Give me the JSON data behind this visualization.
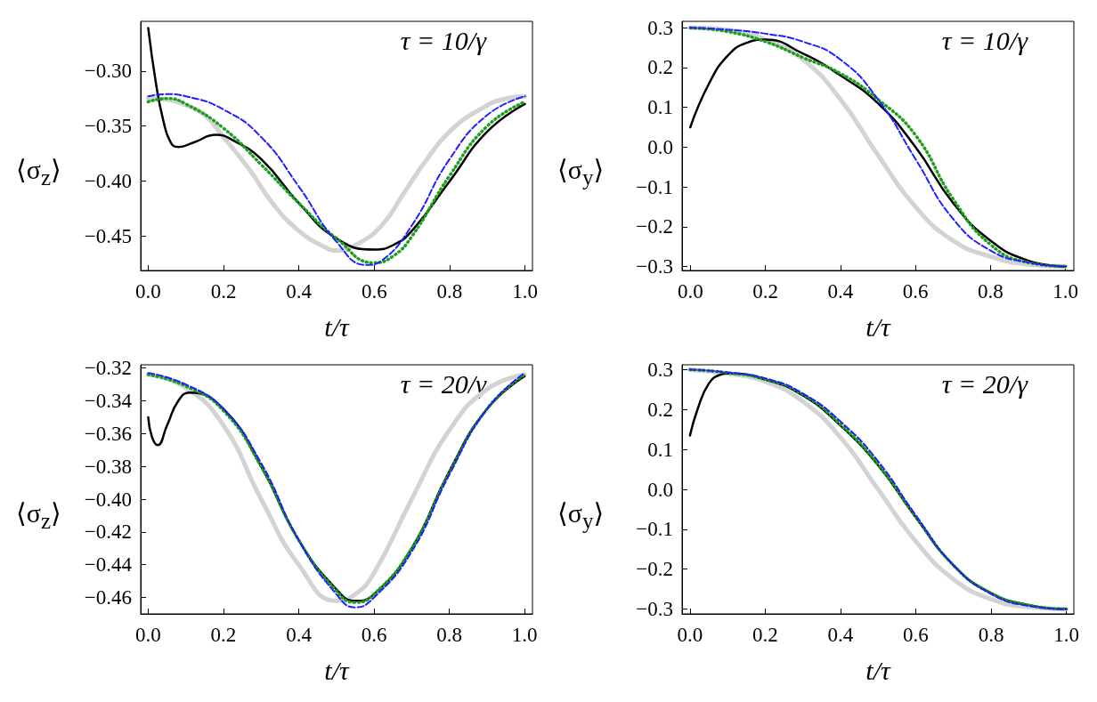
{
  "chart_data": [
    {
      "type": "line",
      "xlabel": "t/τ",
      "ylabel": "⟨σ$_{z}$⟩",
      "annotations": [
        "τ = 10/γ"
      ],
      "grid": false,
      "xlim": [
        -0.02,
        1.02
      ],
      "ylim": [
        -0.481,
        -0.255
      ],
      "xticks": [
        {
          "value": 0,
          "label": "0.0"
        },
        {
          "value": 0.2,
          "label": "0.2"
        },
        {
          "value": 0.4,
          "label": "0.4"
        },
        {
          "value": 0.6,
          "label": "0.6"
        },
        {
          "value": 0.8,
          "label": "0.8"
        },
        {
          "value": 1,
          "label": "1.0"
        }
      ],
      "yticks": [
        {
          "value": -0.3,
          "label": "−0.30"
        },
        {
          "value": -0.35,
          "label": "−0.35"
        },
        {
          "value": -0.4,
          "label": "−0.40"
        },
        {
          "value": -0.45,
          "label": "−0.45"
        }
      ],
      "series": [
        {
          "color": "#d3d3d3",
          "line_style": "solid",
          "x": [
            0,
            0.05,
            0.1,
            0.15,
            0.2,
            0.27,
            0.33,
            0.4,
            0.47,
            0.5,
            0.55,
            0.62,
            0.68,
            0.74,
            0.8,
            0.88,
            0.95,
            1
          ],
          "values": [
            -0.325,
            -0.326,
            -0.331,
            -0.34,
            -0.36,
            -0.39,
            -0.42,
            -0.445,
            -0.46,
            -0.463,
            -0.458,
            -0.44,
            -0.41,
            -0.38,
            -0.355,
            -0.335,
            -0.325,
            -0.323
          ]
        },
        {
          "color": "#000000",
          "line_style": "solid",
          "x": [
            0,
            0.02,
            0.04,
            0.06,
            0.08,
            0.12,
            0.18,
            0.22,
            0.3,
            0.4,
            0.5,
            0.6,
            0.65,
            0.7,
            0.8,
            0.9,
            1
          ],
          "values": [
            -0.261,
            -0.31,
            -0.345,
            -0.365,
            -0.369,
            -0.365,
            -0.358,
            -0.362,
            -0.38,
            -0.42,
            -0.452,
            -0.462,
            -0.458,
            -0.445,
            -0.4,
            -0.355,
            -0.33
          ]
        },
        {
          "color": "#1f1fff",
          "line_style": "dashed",
          "x": [
            0,
            0.05,
            0.1,
            0.2,
            0.3,
            0.4,
            0.5,
            0.58,
            0.62,
            0.7,
            0.8,
            0.9,
            1
          ],
          "values": [
            -0.323,
            -0.321,
            -0.323,
            -0.335,
            -0.36,
            -0.405,
            -0.455,
            -0.476,
            -0.472,
            -0.44,
            -0.38,
            -0.34,
            -0.323
          ]
        },
        {
          "color": "#1aa01a",
          "line_style": "dotted",
          "x": [
            0,
            0.05,
            0.1,
            0.2,
            0.3,
            0.4,
            0.5,
            0.6,
            0.65,
            0.7,
            0.8,
            0.9,
            1
          ],
          "values": [
            -0.328,
            -0.325,
            -0.33,
            -0.352,
            -0.385,
            -0.42,
            -0.452,
            -0.474,
            -0.468,
            -0.45,
            -0.395,
            -0.35,
            -0.328
          ]
        }
      ]
    },
    {
      "type": "line",
      "xlabel": "t/τ",
      "ylabel": "⟨σ$_{y}$⟩",
      "annotations": [
        "τ = 10/γ"
      ],
      "grid": false,
      "xlim": [
        -0.022,
        1.022
      ],
      "ylim": [
        -0.31,
        0.316
      ],
      "xticks": [
        {
          "value": 0,
          "label": "0.0"
        },
        {
          "value": 0.2,
          "label": "0.2"
        },
        {
          "value": 0.4,
          "label": "0.4"
        },
        {
          "value": 0.6,
          "label": "0.6"
        },
        {
          "value": 0.8,
          "label": "0.8"
        },
        {
          "value": 1,
          "label": "1.0"
        }
      ],
      "yticks": [
        {
          "value": 0.3,
          "label": "0.3"
        },
        {
          "value": 0.2,
          "label": "0.2"
        },
        {
          "value": 0.1,
          "label": "0.1"
        },
        {
          "value": 0,
          "label": "0.0"
        },
        {
          "value": -0.1,
          "label": "−0.1"
        },
        {
          "value": -0.2,
          "label": "−0.2"
        },
        {
          "value": -0.3,
          "label": "−0.3"
        }
      ],
      "series": [
        {
          "color": "#d3d3d3",
          "line_style": "solid",
          "x": [
            0,
            0.1,
            0.2,
            0.3,
            0.4,
            0.5,
            0.6,
            0.7,
            0.8,
            0.9,
            1
          ],
          "values": [
            0.3,
            0.295,
            0.27,
            0.22,
            0.12,
            -0.02,
            -0.15,
            -0.235,
            -0.275,
            -0.295,
            -0.3
          ]
        },
        {
          "color": "#000000",
          "line_style": "solid",
          "x": [
            0,
            0.05,
            0.1,
            0.15,
            0.2,
            0.3,
            0.4,
            0.5,
            0.6,
            0.7,
            0.8,
            0.9,
            1
          ],
          "values": [
            0.05,
            0.16,
            0.23,
            0.262,
            0.27,
            0.235,
            0.18,
            0.11,
            0,
            -0.14,
            -0.235,
            -0.285,
            -0.3
          ]
        },
        {
          "color": "#1f1fff",
          "line_style": "dashed",
          "x": [
            0,
            0.1,
            0.2,
            0.3,
            0.4,
            0.5,
            0.6,
            0.7,
            0.8,
            0.9,
            1
          ],
          "values": [
            0.3,
            0.295,
            0.285,
            0.265,
            0.22,
            0.12,
            -0.03,
            -0.18,
            -0.26,
            -0.29,
            -0.3
          ]
        },
        {
          "color": "#1aa01a",
          "line_style": "dotted",
          "x": [
            0,
            0.1,
            0.2,
            0.3,
            0.4,
            0.5,
            0.6,
            0.7,
            0.8,
            0.9,
            1
          ],
          "values": [
            0.3,
            0.29,
            0.265,
            0.225,
            0.185,
            0.12,
            0.03,
            -0.13,
            -0.245,
            -0.29,
            -0.3
          ]
        }
      ]
    },
    {
      "type": "line",
      "xlabel": "t/τ",
      "ylabel": "⟨σ$_{z}$⟩",
      "annotations": [
        "τ = 20/γ"
      ],
      "grid": false,
      "xlim": [
        -0.02,
        1.021
      ],
      "ylim": [
        -0.47,
        -0.318
      ],
      "xticks": [
        {
          "value": 0,
          "label": "0.0"
        },
        {
          "value": 0.2,
          "label": "0.2"
        },
        {
          "value": 0.4,
          "label": "0.4"
        },
        {
          "value": 0.6,
          "label": "0.6"
        },
        {
          "value": 0.8,
          "label": "0.8"
        },
        {
          "value": 1,
          "label": "1.0"
        }
      ],
      "yticks": [
        {
          "value": -0.32,
          "label": "−0.32"
        },
        {
          "value": -0.34,
          "label": "−0.34"
        },
        {
          "value": -0.36,
          "label": "−0.36"
        },
        {
          "value": -0.38,
          "label": "−0.38"
        },
        {
          "value": -0.4,
          "label": "−0.40"
        },
        {
          "value": -0.42,
          "label": "−0.42"
        },
        {
          "value": -0.44,
          "label": "−0.44"
        },
        {
          "value": -0.46,
          "label": "−0.46"
        }
      ],
      "series": [
        {
          "color": "#d3d3d3",
          "line_style": "solid",
          "x": [
            0,
            0.1,
            0.2,
            0.3,
            0.4,
            0.5,
            0.55,
            0.6,
            0.7,
            0.8,
            0.9,
            1
          ],
          "values": [
            -0.324,
            -0.332,
            -0.355,
            -0.4,
            -0.44,
            -0.462,
            -0.458,
            -0.445,
            -0.4,
            -0.358,
            -0.333,
            -0.324
          ]
        },
        {
          "color": "#000000",
          "line_style": "solid",
          "x": [
            0,
            0.01,
            0.025,
            0.05,
            0.08,
            0.11,
            0.2,
            0.3,
            0.4,
            0.5,
            0.55,
            0.6,
            0.7,
            0.8,
            0.9,
            1
          ],
          "values": [
            -0.35,
            -0.362,
            -0.367,
            -0.355,
            -0.34,
            -0.335,
            -0.345,
            -0.38,
            -0.425,
            -0.455,
            -0.462,
            -0.458,
            -0.43,
            -0.383,
            -0.345,
            -0.325
          ]
        },
        {
          "color": "#1f1fff",
          "line_style": "dashed",
          "x": [
            0,
            0.1,
            0.2,
            0.3,
            0.4,
            0.5,
            0.55,
            0.6,
            0.7,
            0.8,
            0.9,
            1
          ],
          "values": [
            -0.323,
            -0.33,
            -0.345,
            -0.378,
            -0.425,
            -0.458,
            -0.466,
            -0.46,
            -0.432,
            -0.385,
            -0.345,
            -0.323
          ]
        },
        {
          "color": "#1aa01a",
          "line_style": "dotted",
          "x": [
            0,
            0.1,
            0.2,
            0.3,
            0.4,
            0.5,
            0.55,
            0.6,
            0.7,
            0.8,
            0.9,
            1
          ],
          "values": [
            -0.324,
            -0.331,
            -0.346,
            -0.38,
            -0.425,
            -0.456,
            -0.463,
            -0.458,
            -0.43,
            -0.384,
            -0.345,
            -0.324
          ]
        }
      ]
    },
    {
      "type": "line",
      "xlabel": "t/τ",
      "ylabel": "⟨σ$_{y}$⟩",
      "annotations": [
        "τ = 20/γ"
      ],
      "grid": false,
      "xlim": [
        -0.021,
        1.02
      ],
      "ylim": [
        -0.312,
        0.312
      ],
      "xticks": [
        {
          "value": 0,
          "label": "0.0"
        },
        {
          "value": 0.2,
          "label": "0.2"
        },
        {
          "value": 0.4,
          "label": "0.4"
        },
        {
          "value": 0.6,
          "label": "0.6"
        },
        {
          "value": 0.8,
          "label": "0.8"
        },
        {
          "value": 1,
          "label": "1.0"
        }
      ],
      "yticks": [
        {
          "value": 0.3,
          "label": "0.3"
        },
        {
          "value": 0.2,
          "label": "0.2"
        },
        {
          "value": 0.1,
          "label": "0.1"
        },
        {
          "value": 0,
          "label": "0.0"
        },
        {
          "value": -0.1,
          "label": "−0.1"
        },
        {
          "value": -0.2,
          "label": "−0.2"
        },
        {
          "value": -0.3,
          "label": "−0.3"
        }
      ],
      "series": [
        {
          "color": "#d3d3d3",
          "line_style": "solid",
          "x": [
            0,
            0.1,
            0.2,
            0.3,
            0.4,
            0.5,
            0.6,
            0.7,
            0.8,
            0.9,
            1
          ],
          "values": [
            0.3,
            0.29,
            0.27,
            0.22,
            0.13,
            0,
            -0.13,
            -0.225,
            -0.275,
            -0.295,
            -0.3
          ]
        },
        {
          "color": "#000000",
          "line_style": "solid",
          "x": [
            0,
            0.02,
            0.05,
            0.08,
            0.1,
            0.2,
            0.3,
            0.4,
            0.5,
            0.6,
            0.7,
            0.8,
            0.9,
            1
          ],
          "values": [
            0.135,
            0.2,
            0.265,
            0.287,
            0.29,
            0.275,
            0.235,
            0.16,
            0.06,
            -0.07,
            -0.19,
            -0.26,
            -0.29,
            -0.3
          ]
        },
        {
          "color": "#1f1fff",
          "line_style": "dashed",
          "x": [
            0,
            0.1,
            0.2,
            0.3,
            0.4,
            0.5,
            0.6,
            0.7,
            0.8,
            0.9,
            1
          ],
          "values": [
            0.3,
            0.293,
            0.278,
            0.24,
            0.17,
            0.07,
            -0.065,
            -0.19,
            -0.262,
            -0.292,
            -0.3
          ]
        },
        {
          "color": "#1aa01a",
          "line_style": "dotted",
          "x": [
            0,
            0.1,
            0.2,
            0.3,
            0.4,
            0.5,
            0.6,
            0.7,
            0.8,
            0.9,
            1
          ],
          "values": [
            0.3,
            0.292,
            0.276,
            0.238,
            0.163,
            0.062,
            -0.068,
            -0.19,
            -0.26,
            -0.29,
            -0.3
          ]
        }
      ]
    }
  ]
}
